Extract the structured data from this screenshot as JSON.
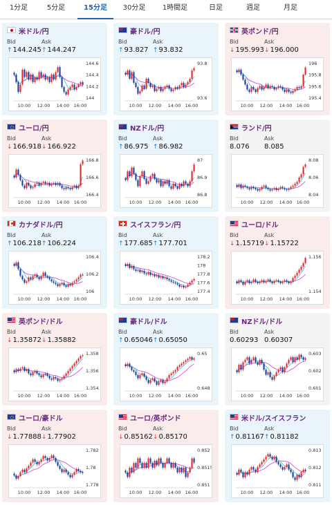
{
  "tabs": [
    {
      "label": "1分足",
      "active": false
    },
    {
      "label": "5分足",
      "active": false
    },
    {
      "label": "15分足",
      "active": true
    },
    {
      "label": "30分足",
      "active": false
    },
    {
      "label": "1時間足",
      "active": false
    },
    {
      "label": "日足",
      "active": false
    },
    {
      "label": "週足",
      "active": false
    },
    {
      "label": "月足",
      "active": false
    }
  ],
  "labels": {
    "bid": "Bid",
    "ask": "Ask"
  },
  "colors": {
    "up": "#1a7fc2",
    "down": "#e03a3a",
    "candle_up": "#e0282e",
    "candle_down": "#1a3f9f",
    "ma_long": "#d94fd5",
    "ma_short": "#52c1d8"
  },
  "x_ticks": [
    "10:00",
    "12:00",
    "14:00",
    "16:00"
  ],
  "pairs": [
    {
      "name": "米ドル/円",
      "flag": "jp",
      "trend": "up",
      "bid": "144.245",
      "ask": "144.247",
      "bid_dir": "up",
      "ask_dir": "up",
      "chart_data": {
        "type": "candlestick",
        "y_ticks": [
          "144.6",
          "144.4",
          "144.2",
          "144"
        ],
        "ylim": [
          143.95,
          144.7
        ],
        "close": [
          144.45,
          144.3,
          144.1,
          144.25,
          144.55,
          144.4,
          144.5,
          144.35,
          144.45,
          144.3,
          144.4,
          144.35,
          144.5,
          144.4,
          144.45,
          144.35,
          144.4,
          144.3,
          144.45,
          144.35,
          144.5,
          144.6,
          144.4,
          144.2,
          144.1,
          144.05,
          144.15,
          144.2,
          144.25,
          144.15,
          144.2,
          144.25,
          144.3,
          144.245
        ]
      }
    },
    {
      "name": "豪ドル/円",
      "flag": "au",
      "trend": "up",
      "bid": "93.827",
      "ask": "93.832",
      "bid_dir": "up",
      "ask_dir": "up",
      "chart_data": {
        "type": "candlestick",
        "y_ticks": [
          "93.8",
          "93.6"
        ],
        "ylim": [
          93.45,
          93.9
        ],
        "close": [
          93.75,
          93.8,
          93.7,
          93.78,
          93.65,
          93.6,
          93.52,
          93.55,
          93.62,
          93.58,
          93.7,
          93.65,
          93.6,
          93.62,
          93.55,
          93.58,
          93.6,
          93.55,
          93.58,
          93.6,
          93.62,
          93.58,
          93.55,
          93.57,
          93.6,
          93.58,
          93.62,
          93.65,
          93.6,
          93.63,
          93.66,
          93.7,
          93.8,
          93.827
        ]
      }
    },
    {
      "name": "英ポンド/円",
      "flag": "uk",
      "trend": "down",
      "bid": "195.993",
      "ask": "196.000",
      "bid_dir": "down",
      "ask_dir": "down",
      "chart_data": {
        "type": "candlestick",
        "y_ticks": [
          "196",
          "195.8",
          "195.6",
          "195.4"
        ],
        "ylim": [
          195.35,
          196.1
        ],
        "close": [
          195.9,
          195.95,
          195.85,
          195.75,
          195.65,
          195.55,
          195.5,
          195.6,
          195.55,
          195.5,
          195.58,
          195.62,
          195.55,
          195.6,
          195.65,
          195.58,
          195.62,
          195.6,
          195.55,
          195.58,
          195.62,
          195.6,
          195.55,
          195.5,
          195.55,
          195.5,
          195.48,
          195.52,
          195.55,
          195.6,
          195.58,
          195.62,
          195.85,
          195.993
        ]
      }
    },
    {
      "name": "ユーロ/円",
      "flag": "eu",
      "trend": "down",
      "bid": "166.918",
      "ask": "166.922",
      "bid_dir": "down",
      "ask_dir": "down",
      "chart_data": {
        "type": "candlestick",
        "y_ticks": [
          "166.8",
          "166.6",
          "166.4"
        ],
        "ylim": [
          166.25,
          166.95
        ],
        "close": [
          166.6,
          166.75,
          166.65,
          166.55,
          166.45,
          166.4,
          166.5,
          166.45,
          166.4,
          166.42,
          166.48,
          166.5,
          166.45,
          166.5,
          166.52,
          166.48,
          166.5,
          166.45,
          166.48,
          166.5,
          166.46,
          166.5,
          166.45,
          166.4,
          166.38,
          166.42,
          166.4,
          166.38,
          166.42,
          166.45,
          166.4,
          166.45,
          166.85,
          166.918
        ]
      }
    },
    {
      "name": "NZドル/円",
      "flag": "au",
      "trend": "up",
      "bid": "86.975",
      "ask": "86.982",
      "bid_dir": "up",
      "ask_dir": "up",
      "chart_data": {
        "type": "candlestick",
        "y_ticks": [
          "87",
          "86.9",
          "86.8"
        ],
        "ylim": [
          86.72,
          87.02
        ],
        "close": [
          86.85,
          86.92,
          86.88,
          86.95,
          86.9,
          86.85,
          86.8,
          86.88,
          86.92,
          86.86,
          86.82,
          86.84,
          86.88,
          86.9,
          86.86,
          86.83,
          86.85,
          86.8,
          86.84,
          86.82,
          86.85,
          86.8,
          86.78,
          86.82,
          86.8,
          86.78,
          86.82,
          86.8,
          86.84,
          86.82,
          86.8,
          86.84,
          86.92,
          86.975
        ]
      }
    },
    {
      "name": "ランド/円",
      "flag": "za",
      "trend": "flat",
      "bid": "8.076",
      "ask": "8.085",
      "bid_dir": "",
      "ask_dir": "",
      "chart_data": {
        "type": "candlestick",
        "y_ticks": [
          "8.08",
          "8.06",
          "8.04"
        ],
        "ylim": [
          8.025,
          8.085
        ],
        "close": [
          8.04,
          8.044,
          8.038,
          8.042,
          8.04,
          8.038,
          8.036,
          8.04,
          8.038,
          8.036,
          8.034,
          8.036,
          8.04,
          8.042,
          8.038,
          8.036,
          8.034,
          8.036,
          8.038,
          8.035,
          8.037,
          8.04,
          8.038,
          8.036,
          8.035,
          8.037,
          8.04,
          8.042,
          8.045,
          8.048,
          8.055,
          8.06,
          8.072,
          8.076
        ]
      }
    },
    {
      "name": "カナダドル/円",
      "flag": "ca",
      "trend": "up",
      "bid": "106.218",
      "ask": "106.224",
      "bid_dir": "up",
      "ask_dir": "up",
      "chart_data": {
        "type": "candlestick",
        "y_ticks": [
          "106.4",
          "106.2",
          "106"
        ],
        "ylim": [
          105.95,
          106.5
        ],
        "close": [
          106.35,
          106.4,
          106.3,
          106.2,
          106.15,
          106.1,
          106.12,
          106.18,
          106.15,
          106.2,
          106.22,
          106.18,
          106.15,
          106.2,
          106.25,
          106.2,
          106.18,
          106.15,
          106.12,
          106.1,
          106.08,
          106.05,
          106.08,
          106.1,
          106.06,
          106.04,
          106.08,
          106.06,
          106.1,
          106.12,
          106.15,
          106.18,
          106.22,
          106.218
        ]
      }
    },
    {
      "name": "スイスフラン/円",
      "flag": "ch",
      "trend": "up",
      "bid": "177.685",
      "ask": "177.701",
      "bid_dir": "up",
      "ask_dir": "up",
      "chart_data": {
        "type": "candlestick",
        "y_ticks": [
          "178.2",
          "178",
          "177.8",
          "177.6",
          "177.4"
        ],
        "ylim": [
          177.35,
          178.25
        ],
        "close": [
          178.0,
          178.05,
          177.95,
          178.0,
          177.92,
          177.88,
          177.9,
          177.85,
          177.88,
          177.82,
          177.8,
          177.85,
          177.78,
          177.8,
          177.75,
          177.78,
          177.72,
          177.75,
          177.7,
          177.72,
          177.68,
          177.65,
          177.62,
          177.6,
          177.58,
          177.55,
          177.5,
          177.52,
          177.48,
          177.5,
          177.55,
          177.6,
          177.65,
          177.685
        ]
      }
    },
    {
      "name": "ユーロ/ドル",
      "flag": "us",
      "trend": "down",
      "bid": "1.15719",
      "ask": "1.15722",
      "bid_dir": "down",
      "ask_dir": "down",
      "chart_data": {
        "type": "candlestick",
        "y_ticks": [
          "1.156",
          "1.154"
        ],
        "ylim": [
          1.1525,
          1.1575
        ],
        "close": [
          1.1538,
          1.1542,
          1.154,
          1.1536,
          1.154,
          1.1542,
          1.1538,
          1.154,
          1.1543,
          1.154,
          1.1538,
          1.154,
          1.1542,
          1.1539,
          1.1541,
          1.1543,
          1.154,
          1.1538,
          1.1541,
          1.1542,
          1.154,
          1.1538,
          1.154,
          1.1542,
          1.154,
          1.1538,
          1.154,
          1.1545,
          1.1548,
          1.1552,
          1.1556,
          1.156,
          1.1565,
          1.15719
        ]
      }
    },
    {
      "name": "英ポンド/ドル",
      "flag": "us",
      "trend": "down",
      "bid": "1.35872",
      "ask": "1.35882",
      "bid_dir": "down",
      "ask_dir": "down",
      "chart_data": {
        "type": "candlestick",
        "y_ticks": [
          "1.358",
          "1.356",
          "1.354"
        ],
        "ylim": [
          1.3532,
          1.3592
        ],
        "close": [
          1.356,
          1.3565,
          1.3562,
          1.3566,
          1.3568,
          1.3562,
          1.3565,
          1.3558,
          1.3555,
          1.356,
          1.3562,
          1.3558,
          1.3555,
          1.3552,
          1.3556,
          1.3558,
          1.3554,
          1.355,
          1.3548,
          1.3552,
          1.355,
          1.3546,
          1.3548,
          1.355,
          1.3554,
          1.3558,
          1.3562,
          1.3566,
          1.357,
          1.3574,
          1.3578,
          1.3582,
          1.3586,
          1.35872
        ]
      }
    },
    {
      "name": "豪ドル/ドル",
      "flag": "au",
      "trend": "up",
      "bid": "0.65046",
      "ask": "0.65050",
      "bid_dir": "up",
      "ask_dir": "up",
      "chart_data": {
        "type": "candlestick",
        "y_ticks": [
          "0.65",
          "0.648"
        ],
        "ylim": [
          0.6466,
          0.6512
        ],
        "close": [
          0.6495,
          0.6498,
          0.6494,
          0.649,
          0.6488,
          0.6484,
          0.648,
          0.6484,
          0.6486,
          0.6482,
          0.6478,
          0.6474,
          0.6478,
          0.648,
          0.6476,
          0.6472,
          0.6476,
          0.6478,
          0.6474,
          0.6476,
          0.648,
          0.6484,
          0.6486,
          0.6488,
          0.649,
          0.6494,
          0.6496,
          0.6498,
          0.65,
          0.6502,
          0.6504,
          0.6506,
          0.6503,
          0.65046
        ]
      }
    },
    {
      "name": "NZドル/ドル",
      "flag": "au",
      "trend": "flat",
      "bid": "0.60293",
      "ask": "0.60307",
      "bid_dir": "",
      "ask_dir": "",
      "chart_data": {
        "type": "candlestick",
        "y_ticks": [
          "0.603",
          "0.602",
          "0.601"
        ],
        "ylim": [
          0.6004,
          0.6034
        ],
        "close": [
          0.6018,
          0.6024,
          0.602,
          0.6026,
          0.6028,
          0.603,
          0.6025,
          0.6028,
          0.603,
          0.6026,
          0.6024,
          0.6028,
          0.6025,
          0.602,
          0.6016,
          0.6018,
          0.6014,
          0.6012,
          0.6015,
          0.6018,
          0.602,
          0.6022,
          0.6018,
          0.6022,
          0.6025,
          0.6028,
          0.603,
          0.6026,
          0.603,
          0.6028,
          0.6032,
          0.603,
          0.6028,
          0.60293
        ]
      }
    },
    {
      "name": "ユーロ/豪ドル",
      "flag": "eu",
      "trend": "down",
      "bid": "1.77888",
      "ask": "1.77902",
      "bid_dir": "down",
      "ask_dir": "down",
      "chart_data": {
        "type": "candlestick",
        "y_ticks": [
          "1.782",
          "1.78",
          "1.778"
        ],
        "ylim": [
          1.7768,
          1.7826
        ],
        "close": [
          1.7785,
          1.778,
          1.7784,
          1.779,
          1.7794,
          1.779,
          1.7796,
          1.78,
          1.7805,
          1.781,
          1.7806,
          1.7802,
          1.7806,
          1.781,
          1.7815,
          1.7812,
          1.7808,
          1.7812,
          1.7816,
          1.7812,
          1.7806,
          1.78,
          1.7795,
          1.779,
          1.7794,
          1.779,
          1.7786,
          1.7782,
          1.7786,
          1.779,
          1.7795,
          1.7792,
          1.779,
          1.77888
        ]
      }
    },
    {
      "name": "ユーロ/英ポンド",
      "flag": "us",
      "trend": "down",
      "bid": "0.85162",
      "ask": "0.85170",
      "bid_dir": "down",
      "ask_dir": "down",
      "chart_data": {
        "type": "candlestick",
        "y_ticks": [
          "0.852",
          "0.8515",
          "0.851"
        ],
        "ylim": [
          0.8506,
          0.8522
        ],
        "close": [
          0.8512,
          0.851,
          0.8514,
          0.8512,
          0.8516,
          0.8514,
          0.8518,
          0.8516,
          0.8514,
          0.8516,
          0.8514,
          0.8518,
          0.8516,
          0.8514,
          0.8517,
          0.8515,
          0.8518,
          0.8516,
          0.8514,
          0.8516,
          0.8518,
          0.8516,
          0.8514,
          0.8516,
          0.8514,
          0.8512,
          0.8514,
          0.8512,
          0.8514,
          0.851,
          0.8512,
          0.8514,
          0.8518,
          0.85162
        ]
      }
    },
    {
      "name": "米ドル/スイスフラン",
      "flag": "us",
      "trend": "up",
      "bid": "0.81167",
      "ask": "0.81182",
      "bid_dir": "up",
      "ask_dir": "up",
      "chart_data": {
        "type": "candlestick",
        "y_ticks": [
          "0.813",
          "0.812",
          "0.811"
        ],
        "ylim": [
          0.8105,
          0.8134
        ],
        "close": [
          0.8114,
          0.8118,
          0.8116,
          0.8112,
          0.8116,
          0.8114,
          0.8118,
          0.812,
          0.8118,
          0.8116,
          0.812,
          0.8122,
          0.8124,
          0.8126,
          0.8128,
          0.813,
          0.8128,
          0.8126,
          0.8128,
          0.8124,
          0.8122,
          0.812,
          0.8118,
          0.812,
          0.8122,
          0.8118,
          0.8116,
          0.8112,
          0.811,
          0.8114,
          0.8112,
          0.8116,
          0.8118,
          0.81167
        ]
      }
    }
  ]
}
